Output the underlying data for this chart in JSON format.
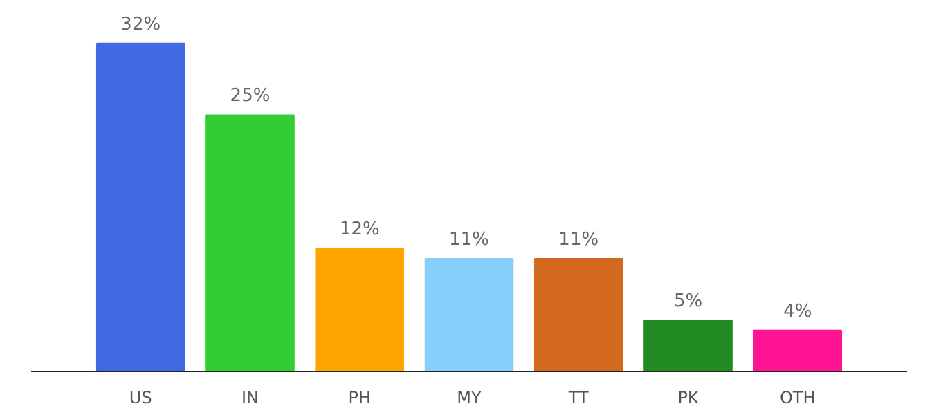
{
  "chart_data": {
    "type": "bar",
    "categories": [
      "US",
      "IN",
      "PH",
      "MY",
      "TT",
      "PK",
      "OTH"
    ],
    "values": [
      32,
      25,
      12,
      11,
      11,
      5,
      4
    ],
    "value_labels": [
      "32%",
      "25%",
      "12%",
      "11%",
      "11%",
      "5%",
      "4%"
    ],
    "colors": [
      "#4169e1",
      "#32cd32",
      "#ffa500",
      "#87cefa",
      "#d2691e",
      "#228b22",
      "#ff1493"
    ],
    "grid": false
  }
}
